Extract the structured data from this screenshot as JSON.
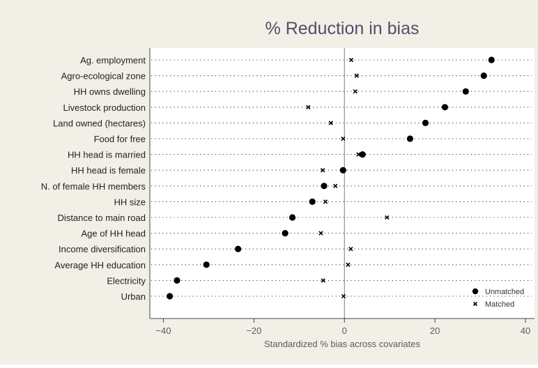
{
  "chart_data": {
    "type": "scatter",
    "title": "% Reduction in bias",
    "xlabel": "Standardized % bias across covariates",
    "ylabel": "",
    "xlim": [
      -43,
      42
    ],
    "xticks": [
      -40,
      -20,
      0,
      20,
      40
    ],
    "categories": [
      "Ag. employment",
      "Agro-ecological zone",
      "HH owns dwelling",
      "Livestock production",
      "Land owned (hectares)",
      "Food for free",
      "HH head is married",
      "HH head is female",
      "N. of female HH members",
      "HH size",
      "Distance to main road",
      "Age of HH head",
      "Income diversification",
      "Average HH education",
      "Electricity",
      "Urban"
    ],
    "series": [
      {
        "name": "Unmatched",
        "marker": "circle",
        "values": [
          32.5,
          30.8,
          26.8,
          22.2,
          17.9,
          14.5,
          4.0,
          -0.3,
          -4.5,
          -7.1,
          -11.5,
          -13.1,
          -23.5,
          -30.5,
          -37.0,
          -38.6
        ]
      },
      {
        "name": "Matched",
        "marker": "x",
        "values": [
          1.5,
          2.7,
          2.4,
          -8.0,
          -3.0,
          -0.3,
          3.1,
          -4.8,
          -2.0,
          -4.2,
          9.4,
          -5.2,
          1.4,
          0.8,
          -4.7,
          -0.2
        ]
      }
    ],
    "legend_position": "bottom-right",
    "grid": "dotted horizontal",
    "colors": {
      "background": "#f2efe6",
      "plot": "#ffffff",
      "title": "#5a4a6a",
      "axis_text": "#5b5b5b",
      "marker": "#000000",
      "gridline": "#3a3a3a"
    }
  }
}
